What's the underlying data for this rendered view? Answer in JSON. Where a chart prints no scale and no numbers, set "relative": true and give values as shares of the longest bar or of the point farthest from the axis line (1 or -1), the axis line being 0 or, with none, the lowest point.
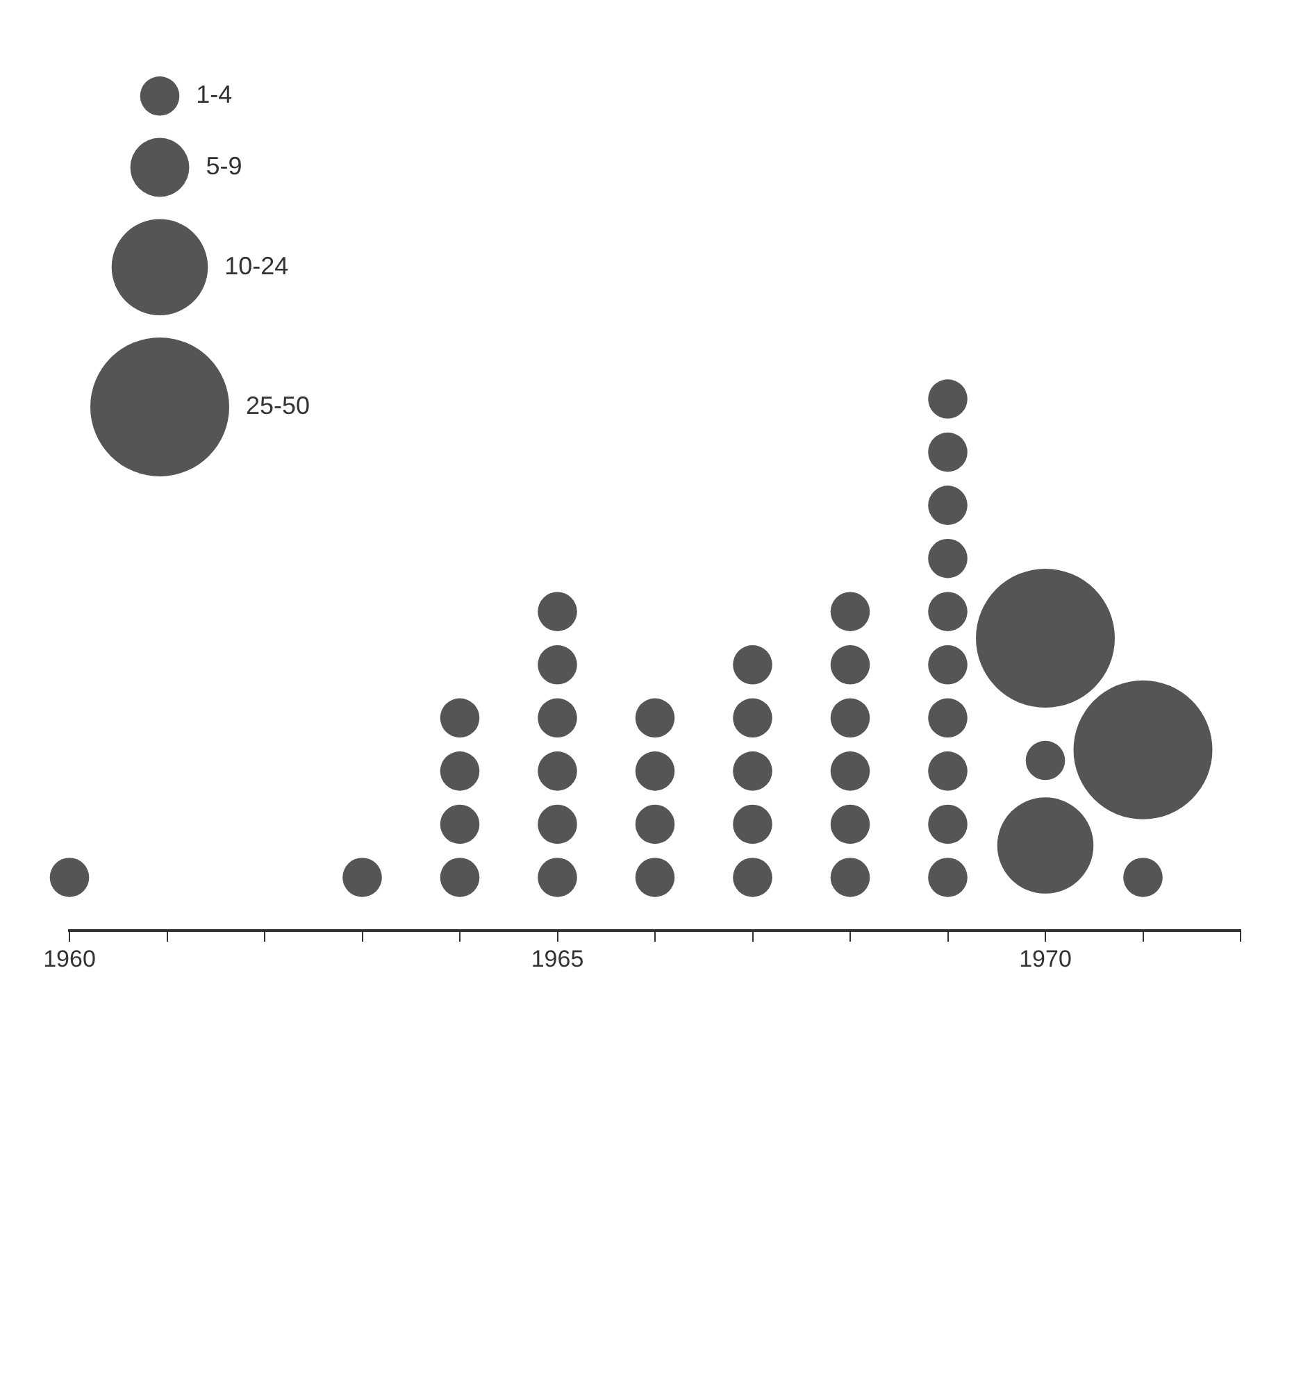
{
  "chart_data": {
    "type": "bubble",
    "relative": true,
    "color": "#555555",
    "x": [
      1960,
      1963,
      1964,
      1964,
      1964,
      1964,
      1965,
      1965,
      1965,
      1965,
      1965,
      1965,
      1966,
      1966,
      1966,
      1966,
      1967,
      1967,
      1967,
      1967,
      1967,
      1968,
      1968,
      1968,
      1968,
      1968,
      1968,
      1969,
      1969,
      1969,
      1969,
      1969,
      1969,
      1969,
      1969,
      1969,
      1969,
      1970,
      1970,
      1970,
      1971,
      1971
    ],
    "values": [
      0.1,
      0.1,
      0.1,
      0.2,
      0.3,
      0.4,
      0.1,
      0.2,
      0.3,
      0.4,
      0.5,
      0.6,
      0.1,
      0.2,
      0.3,
      0.4,
      0.1,
      0.2,
      0.3,
      0.4,
      0.5,
      0.1,
      0.2,
      0.3,
      0.4,
      0.5,
      0.6,
      0.1,
      0.2,
      0.3,
      0.4,
      0.5,
      0.6,
      0.7,
      0.8,
      0.9,
      1.0,
      0.16,
      0.32,
      0.55,
      0.1,
      0.34
    ],
    "sizes": [
      4,
      4,
      4,
      4,
      4,
      4,
      4,
      4,
      4,
      4,
      4,
      4,
      4,
      4,
      4,
      4,
      4,
      4,
      4,
      4,
      4,
      4,
      4,
      4,
      4,
      4,
      4,
      4,
      4,
      4,
      4,
      4,
      4,
      4,
      4,
      4,
      4,
      24,
      4,
      50,
      4,
      50
    ],
    "size_legend": [
      {
        "value": 4,
        "label": "1-4"
      },
      {
        "value": 9,
        "label": "5-9"
      },
      {
        "value": 24,
        "label": "10-24"
      },
      {
        "value": 50,
        "label": "25-50"
      }
    ],
    "xlim": [
      1960,
      1972
    ],
    "xticks": [
      {
        "value": 1960,
        "label": "1960"
      },
      {
        "value": 1961,
        "label": null
      },
      {
        "value": 1962,
        "label": null
      },
      {
        "value": 1963,
        "label": null
      },
      {
        "value": 1964,
        "label": null
      },
      {
        "value": 1965,
        "label": "1965"
      },
      {
        "value": 1966,
        "label": null
      },
      {
        "value": 1967,
        "label": null
      },
      {
        "value": 1968,
        "label": null
      },
      {
        "value": 1969,
        "label": null
      },
      {
        "value": 1970,
        "label": "1970"
      },
      {
        "value": 1971,
        "label": null
      },
      {
        "value": 1972,
        "label": null
      }
    ]
  }
}
